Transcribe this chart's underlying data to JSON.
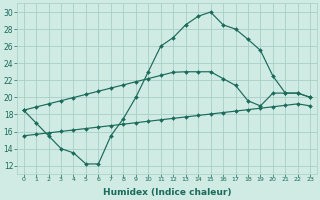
{
  "xlabel": "Humidex (Indice chaleur)",
  "bg_color": "#d0eae4",
  "grid_color": "#a8cec8",
  "line_color": "#1a6b5a",
  "xlim_min": -0.5,
  "xlim_max": 23.5,
  "ylim_min": 11,
  "ylim_max": 31,
  "xticks": [
    0,
    1,
    2,
    3,
    4,
    5,
    6,
    7,
    8,
    9,
    10,
    11,
    12,
    13,
    14,
    15,
    16,
    17,
    18,
    19,
    20,
    21,
    22,
    23
  ],
  "yticks": [
    12,
    14,
    16,
    18,
    20,
    22,
    24,
    26,
    28,
    30
  ],
  "curve1_x": [
    0,
    1,
    2,
    3,
    4,
    5,
    6,
    7,
    8,
    9,
    10,
    11,
    12,
    13,
    14,
    15,
    16,
    17,
    18,
    19,
    20,
    21,
    22,
    23
  ],
  "curve1_y": [
    18.5,
    17.0,
    15.5,
    14.0,
    13.5,
    12.2,
    12.2,
    15.5,
    17.5,
    20.0,
    23.0,
    26.0,
    27.0,
    28.5,
    29.5,
    30.0,
    28.5,
    28.0,
    26.8,
    25.5,
    22.5,
    20.5,
    20.5,
    20.0
  ],
  "curve2_x": [
    0,
    1,
    2,
    3,
    4,
    5,
    6,
    7,
    8,
    9,
    10,
    11,
    12,
    13,
    14,
    15,
    16,
    17,
    18,
    19,
    20,
    21,
    22,
    23
  ],
  "curve2_y": [
    18.5,
    18.87,
    19.24,
    19.61,
    19.98,
    20.35,
    20.72,
    21.09,
    21.46,
    21.83,
    22.2,
    22.57,
    22.94,
    23.0,
    23.0,
    23.0,
    22.2,
    21.4,
    19.6,
    19.0,
    20.5,
    20.5,
    20.5,
    20.0
  ],
  "curve3_x": [
    0,
    1,
    2,
    3,
    4,
    5,
    6,
    7,
    8,
    9,
    10,
    11,
    12,
    13,
    14,
    15,
    16,
    17,
    18,
    19,
    20,
    21,
    22,
    23
  ],
  "curve3_y": [
    15.5,
    15.67,
    15.84,
    16.01,
    16.18,
    16.35,
    16.52,
    16.69,
    16.86,
    17.03,
    17.2,
    17.37,
    17.54,
    17.71,
    17.88,
    18.05,
    18.22,
    18.39,
    18.56,
    18.73,
    18.9,
    19.07,
    19.24,
    19.0
  ]
}
